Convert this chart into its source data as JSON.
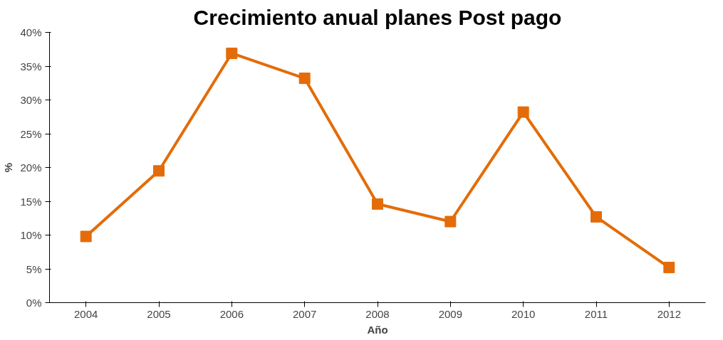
{
  "chart_data": {
    "type": "line",
    "title": "Crecimiento anual planes Post pago",
    "xlabel": "Año",
    "ylabel": "%",
    "categories": [
      "2004",
      "2005",
      "2006",
      "2007",
      "2008",
      "2009",
      "2010",
      "2011",
      "2012"
    ],
    "series": [
      {
        "color": "#e36c09",
        "values": [
          9.8,
          19.5,
          36.9,
          33.2,
          14.6,
          12.0,
          28.2,
          12.7,
          5.2
        ]
      }
    ],
    "ylim": [
      0,
      40
    ],
    "yticks": [
      {
        "value": 0,
        "label": "0%"
      },
      {
        "value": 5,
        "label": "5%"
      },
      {
        "value": 10,
        "label": "10%"
      },
      {
        "value": 15,
        "label": "15%"
      },
      {
        "value": 20,
        "label": "20%"
      },
      {
        "value": 25,
        "label": "25%"
      },
      {
        "value": 30,
        "label": "30%"
      },
      {
        "value": 35,
        "label": "35%"
      },
      {
        "value": 40,
        "label": "40%"
      }
    ],
    "grid": false,
    "marker": "square",
    "line_style": "solid"
  }
}
